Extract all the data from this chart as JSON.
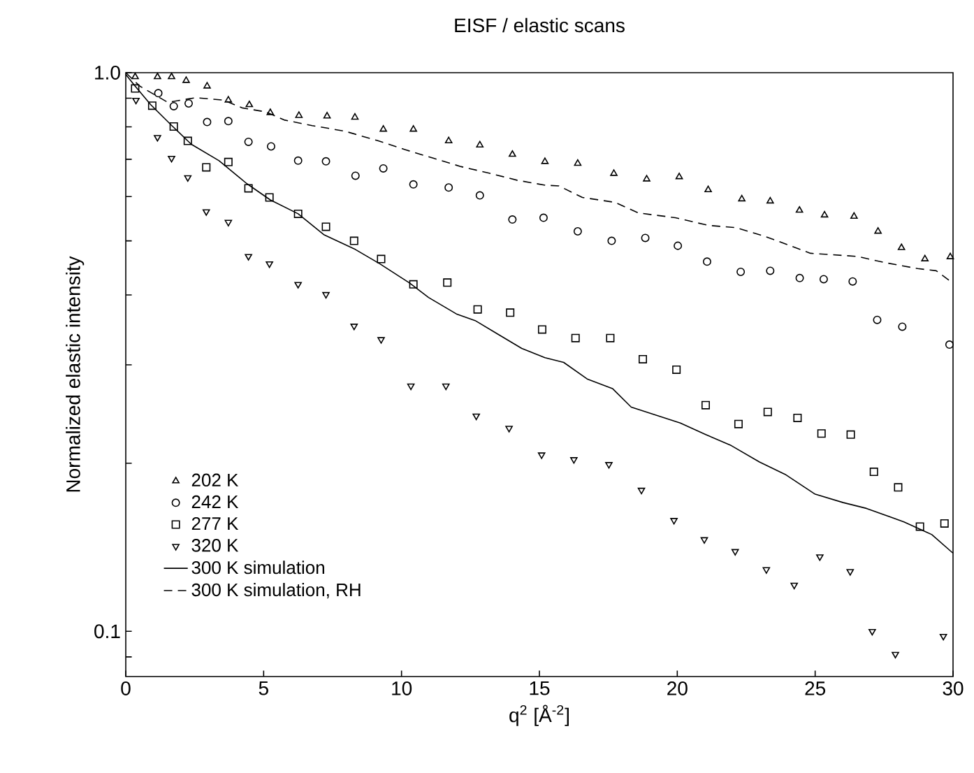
{
  "chart_data": {
    "type": "scatter",
    "title": "EISF / elastic scans",
    "xlabel": "q$^{2}$ [Å$^{-2}$]",
    "ylabel": "Normalized elastic intensity",
    "log": "y",
    "xlim": [
      0,
      30
    ],
    "ylim": [
      0.083,
      1.0
    ],
    "xticks": [
      0,
      5,
      10,
      15,
      20,
      25,
      30
    ],
    "yticks": [
      {
        "value": 0.09,
        "label": null
      },
      {
        "value": 0.1,
        "label": "0.1"
      },
      {
        "value": 0.2,
        "label": null
      },
      {
        "value": 0.3,
        "label": null
      },
      {
        "value": 0.4,
        "label": null
      },
      {
        "value": 0.5,
        "label": null
      },
      {
        "value": 0.6,
        "label": null
      },
      {
        "value": 0.7,
        "label": null
      },
      {
        "value": 0.8,
        "label": null
      },
      {
        "value": 0.9,
        "label": null
      },
      {
        "value": 1.0,
        "label": "1.0"
      }
    ],
    "legend": "bottom left",
    "grid": false,
    "series": [
      {
        "name": "202 K",
        "color": "#000000",
        "marker": "triangle",
        "x": [
          0.34,
          1.15,
          1.66,
          2.19,
          2.95,
          3.72,
          4.48,
          5.24,
          6.28,
          7.3,
          8.31,
          9.34,
          10.43,
          11.71,
          12.84,
          14.02,
          15.2,
          16.39,
          17.7,
          18.89,
          20.07,
          21.12,
          22.34,
          23.37,
          24.43,
          25.34,
          26.41,
          27.28,
          28.13,
          28.98,
          29.9
        ],
        "values": [
          0.983,
          0.983,
          0.983,
          0.968,
          0.946,
          0.893,
          0.876,
          0.848,
          0.838,
          0.836,
          0.832,
          0.792,
          0.792,
          0.755,
          0.742,
          0.714,
          0.693,
          0.688,
          0.66,
          0.645,
          0.651,
          0.617,
          0.594,
          0.589,
          0.567,
          0.556,
          0.553,
          0.52,
          0.486,
          0.464,
          0.468
        ]
      },
      {
        "name": "242 K",
        "color": "#000000",
        "marker": "circle",
        "x": [
          1.18,
          1.74,
          2.28,
          2.95,
          3.72,
          4.45,
          5.27,
          6.25,
          7.26,
          8.33,
          9.34,
          10.43,
          11.71,
          12.84,
          14.02,
          15.15,
          16.39,
          17.62,
          18.84,
          20.02,
          21.08,
          22.3,
          23.37,
          24.44,
          25.31,
          26.36,
          27.25,
          28.16,
          29.87
        ],
        "values": [
          0.919,
          0.871,
          0.881,
          0.816,
          0.819,
          0.752,
          0.738,
          0.696,
          0.694,
          0.654,
          0.674,
          0.631,
          0.623,
          0.603,
          0.546,
          0.55,
          0.52,
          0.5,
          0.506,
          0.49,
          0.459,
          0.44,
          0.442,
          0.429,
          0.427,
          0.423,
          0.361,
          0.351,
          0.326
        ]
      },
      {
        "name": "277 K",
        "color": "#000000",
        "marker": "square",
        "x": [
          0.34,
          0.96,
          1.74,
          2.25,
          2.92,
          3.72,
          4.45,
          5.21,
          6.25,
          7.26,
          8.28,
          9.26,
          10.43,
          11.66,
          12.76,
          13.94,
          15.1,
          16.31,
          17.57,
          18.75,
          19.97,
          21.03,
          22.22,
          23.28,
          24.36,
          25.23,
          26.29,
          27.13,
          28.01,
          28.8,
          29.69
        ],
        "values": [
          0.937,
          0.873,
          0.801,
          0.755,
          0.677,
          0.692,
          0.621,
          0.598,
          0.559,
          0.53,
          0.5,
          0.464,
          0.418,
          0.421,
          0.377,
          0.372,
          0.347,
          0.335,
          0.335,
          0.307,
          0.294,
          0.254,
          0.235,
          0.247,
          0.241,
          0.226,
          0.225,
          0.193,
          0.181,
          0.154,
          0.156
        ]
      },
      {
        "name": "320 K",
        "color": "#000000",
        "marker": "triangle down",
        "x": [
          0.37,
          1.15,
          1.66,
          2.25,
          2.92,
          3.72,
          4.45,
          5.21,
          6.25,
          7.26,
          8.28,
          9.26,
          10.34,
          11.61,
          12.71,
          13.9,
          15.08,
          16.25,
          17.52,
          18.7,
          19.88,
          20.98,
          22.1,
          23.23,
          24.24,
          25.17,
          26.27,
          27.07,
          27.91,
          29.65
        ],
        "values": [
          0.893,
          0.766,
          0.703,
          0.649,
          0.564,
          0.54,
          0.469,
          0.455,
          0.418,
          0.401,
          0.352,
          0.333,
          0.275,
          0.275,
          0.243,
          0.231,
          0.207,
          0.203,
          0.199,
          0.179,
          0.158,
          0.146,
          0.139,
          0.129,
          0.121,
          0.136,
          0.128,
          0.1,
          0.091,
          0.098
        ]
      },
      {
        "name": "300 K simulation",
        "color": "#000000",
        "type": "line",
        "marker": "none",
        "line_style": "solid",
        "x": [
          0,
          0.34,
          0.91,
          1.67,
          2.37,
          3.38,
          4.39,
          5.24,
          6.25,
          7.18,
          8.28,
          9.21,
          10.3,
          10.98,
          11.99,
          12.67,
          13.51,
          14.36,
          15.2,
          15.88,
          16.73,
          17.65,
          18.33,
          20.11,
          21.03,
          21.96,
          22.98,
          23.91,
          25.0,
          26.02,
          26.86,
          28.22,
          29.23,
          30
        ],
        "values": [
          0.993,
          0.946,
          0.876,
          0.804,
          0.745,
          0.696,
          0.633,
          0.592,
          0.559,
          0.513,
          0.484,
          0.455,
          0.42,
          0.396,
          0.37,
          0.36,
          0.34,
          0.321,
          0.309,
          0.303,
          0.283,
          0.272,
          0.252,
          0.236,
          0.225,
          0.215,
          0.201,
          0.191,
          0.176,
          0.17,
          0.166,
          0.157,
          0.149,
          0.138
        ]
      },
      {
        "name": "300 K simulation, RH",
        "color": "#000000",
        "type": "line",
        "marker": "none",
        "line_style": "dashed",
        "x": [
          0,
          0.51,
          1.52,
          2.53,
          3.55,
          4.22,
          5.07,
          5.74,
          6.76,
          7.94,
          9.12,
          10.14,
          11.15,
          12.16,
          13.18,
          14.19,
          15.21,
          15.71,
          16.56,
          17.74,
          18.59,
          19.93,
          21.12,
          22.13,
          23.15,
          24.83,
          26.52,
          27.54,
          28.72,
          29.39,
          30
        ],
        "values": [
          1.0,
          0.946,
          0.885,
          0.902,
          0.893,
          0.865,
          0.851,
          0.823,
          0.804,
          0.786,
          0.756,
          0.728,
          0.703,
          0.679,
          0.661,
          0.642,
          0.629,
          0.627,
          0.598,
          0.586,
          0.561,
          0.55,
          0.533,
          0.528,
          0.51,
          0.475,
          0.469,
          0.457,
          0.446,
          0.442,
          0.42
        ]
      }
    ]
  }
}
